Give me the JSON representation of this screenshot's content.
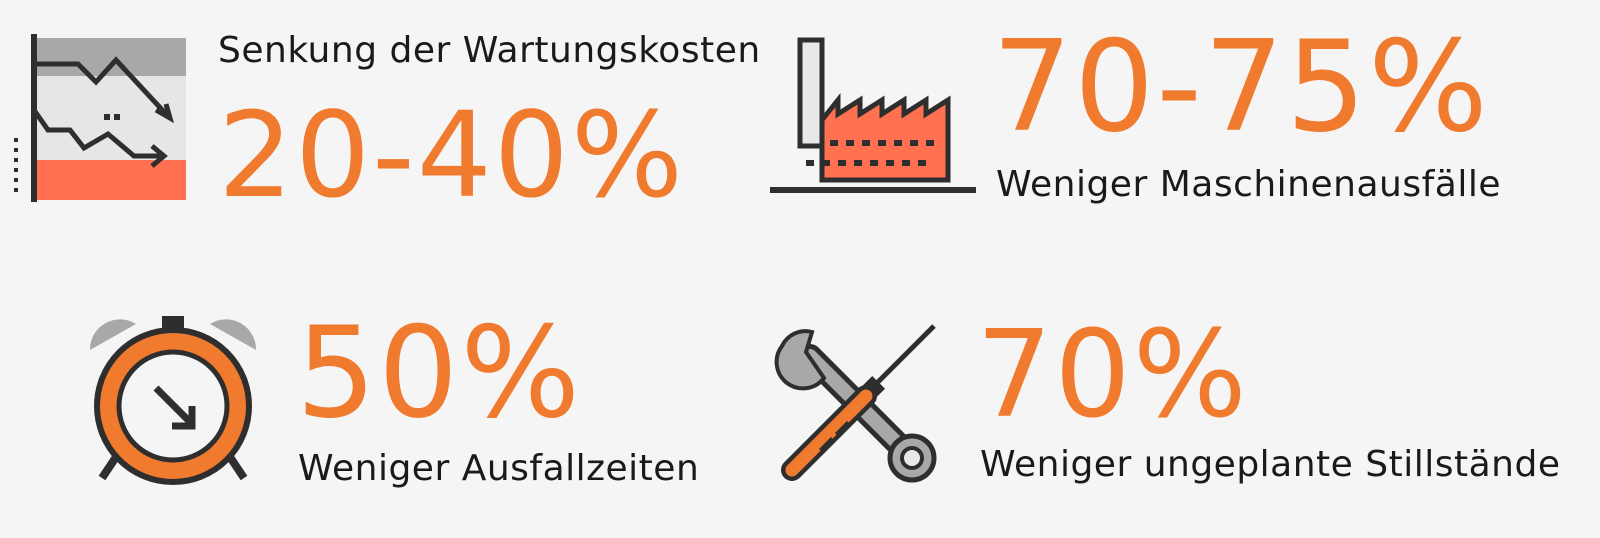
{
  "accent_color": "#f07a2d",
  "stats": [
    {
      "label": "Senkung der Wartungskosten",
      "value": "20-40%",
      "icon": "declining-chart-icon"
    },
    {
      "label": "Weniger Maschinenausfälle",
      "value": "70-75%",
      "icon": "factory-icon"
    },
    {
      "label": "Weniger Ausfallzeiten",
      "value": "50%",
      "icon": "alarm-clock-icon"
    },
    {
      "label": "Weniger ungeplante Stillstände",
      "value": "70%",
      "icon": "wrench-screwdriver-icon"
    }
  ]
}
